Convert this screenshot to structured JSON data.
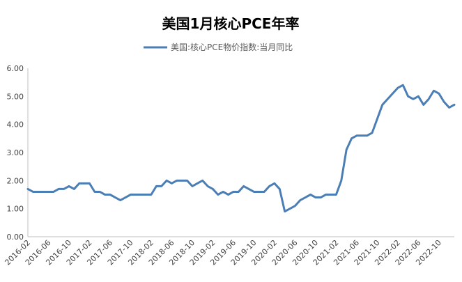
{
  "chart_data": {
    "type": "line",
    "title": "美国1月核心PCE年率",
    "xlabel": "",
    "ylabel": "",
    "ylim": [
      0,
      6
    ],
    "yticks": [
      "0.00",
      "1.00",
      "2.00",
      "3.00",
      "4.00",
      "5.00",
      "6.00"
    ],
    "grid": false,
    "legend": "top",
    "x": [
      "2016-02",
      "2016-03",
      "2016-04",
      "2016-05",
      "2016-06",
      "2016-07",
      "2016-08",
      "2016-09",
      "2016-10",
      "2016-11",
      "2016-12",
      "2017-01",
      "2017-02",
      "2017-03",
      "2017-04",
      "2017-05",
      "2017-06",
      "2017-07",
      "2017-08",
      "2017-09",
      "2017-10",
      "2017-11",
      "2017-12",
      "2018-01",
      "2018-02",
      "2018-03",
      "2018-04",
      "2018-05",
      "2018-06",
      "2018-07",
      "2018-08",
      "2018-09",
      "2018-10",
      "2018-11",
      "2018-12",
      "2019-01",
      "2019-02",
      "2019-03",
      "2019-04",
      "2019-05",
      "2019-06",
      "2019-07",
      "2019-08",
      "2019-09",
      "2019-10",
      "2019-11",
      "2019-12",
      "2020-01",
      "2020-02",
      "2020-03",
      "2020-04",
      "2020-05",
      "2020-06",
      "2020-07",
      "2020-08",
      "2020-09",
      "2020-10",
      "2020-11",
      "2020-12",
      "2021-01",
      "2021-02",
      "2021-03",
      "2021-04",
      "2021-05",
      "2021-06",
      "2021-07",
      "2021-08",
      "2021-09",
      "2021-10",
      "2021-11",
      "2021-12",
      "2022-01",
      "2022-02",
      "2022-03",
      "2022-04",
      "2022-05",
      "2022-06",
      "2022-07",
      "2022-08",
      "2022-09",
      "2022-10",
      "2022-11",
      "2022-12",
      "2023-01"
    ],
    "xtick_labels": [
      "2016-02",
      "2016-06",
      "2016-10",
      "2017-02",
      "2017-06",
      "2017-10",
      "2018-02",
      "2018-06",
      "2018-10",
      "2019-02",
      "2019-06",
      "2019-10",
      "2020-02",
      "2020-06",
      "2020-10",
      "2021-02",
      "2021-06",
      "2021-10",
      "2022-02",
      "2022-06",
      "2022-10"
    ],
    "series": [
      {
        "name": "美国:核心PCE物价指数:当月同比",
        "color": "#4a7eb4",
        "values": [
          1.7,
          1.6,
          1.6,
          1.6,
          1.6,
          1.6,
          1.7,
          1.7,
          1.8,
          1.7,
          1.9,
          1.9,
          1.9,
          1.6,
          1.6,
          1.5,
          1.5,
          1.4,
          1.3,
          1.4,
          1.5,
          1.5,
          1.5,
          1.5,
          1.5,
          1.8,
          1.8,
          2.0,
          1.9,
          2.0,
          2.0,
          2.0,
          1.8,
          1.9,
          2.0,
          1.8,
          1.7,
          1.5,
          1.6,
          1.5,
          1.6,
          1.6,
          1.8,
          1.7,
          1.6,
          1.6,
          1.6,
          1.8,
          1.9,
          1.7,
          0.9,
          1.0,
          1.1,
          1.3,
          1.4,
          1.5,
          1.4,
          1.4,
          1.5,
          1.5,
          1.5,
          2.0,
          3.1,
          3.5,
          3.6,
          3.6,
          3.6,
          3.7,
          4.2,
          4.7,
          4.9,
          5.1,
          5.3,
          5.4,
          5.0,
          4.9,
          5.0,
          4.7,
          4.9,
          5.2,
          5.1,
          4.8,
          4.6,
          4.7
        ]
      }
    ]
  }
}
